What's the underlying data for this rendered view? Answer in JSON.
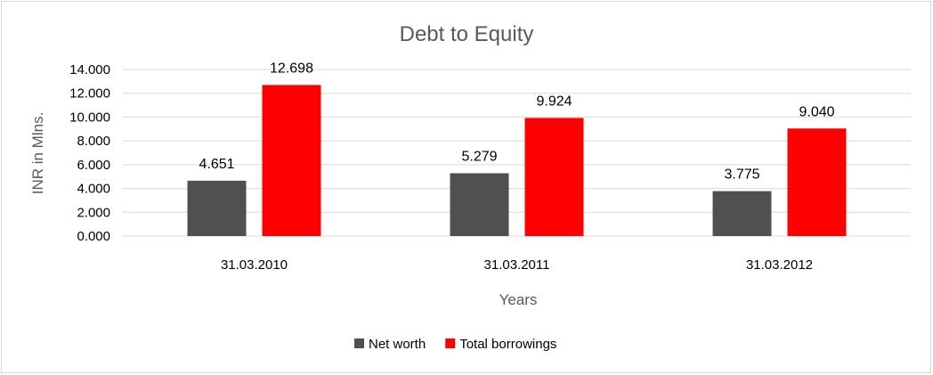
{
  "chart_data": {
    "type": "bar",
    "title": "Debt to Equity",
    "xlabel": "Years",
    "ylabel": "INR in Mlns.",
    "categories": [
      "31.03.2010",
      "31.03.2011",
      "31.03.2012"
    ],
    "series": [
      {
        "name": "Net worth",
        "color": "#505050",
        "values": [
          4.651,
          5.279,
          3.775
        ],
        "labels": [
          "4.651",
          "5.279",
          "3.775"
        ]
      },
      {
        "name": "Total borrowings",
        "color": "#ff0000",
        "values": [
          12.698,
          9.924,
          9.04
        ],
        "labels": [
          "12.698",
          "9.924",
          "9.040"
        ]
      }
    ],
    "ylim": [
      0,
      14
    ],
    "yticks": [
      {
        "value": 0,
        "label": "0.000"
      },
      {
        "value": 2,
        "label": "2.000"
      },
      {
        "value": 4,
        "label": "4.000"
      },
      {
        "value": 6,
        "label": "6.000"
      },
      {
        "value": 8,
        "label": "8.000"
      },
      {
        "value": 10,
        "label": "10.000"
      },
      {
        "value": 12,
        "label": "12.000"
      },
      {
        "value": 14,
        "label": "14.000"
      }
    ],
    "grid": true,
    "legend_position": "bottom"
  }
}
